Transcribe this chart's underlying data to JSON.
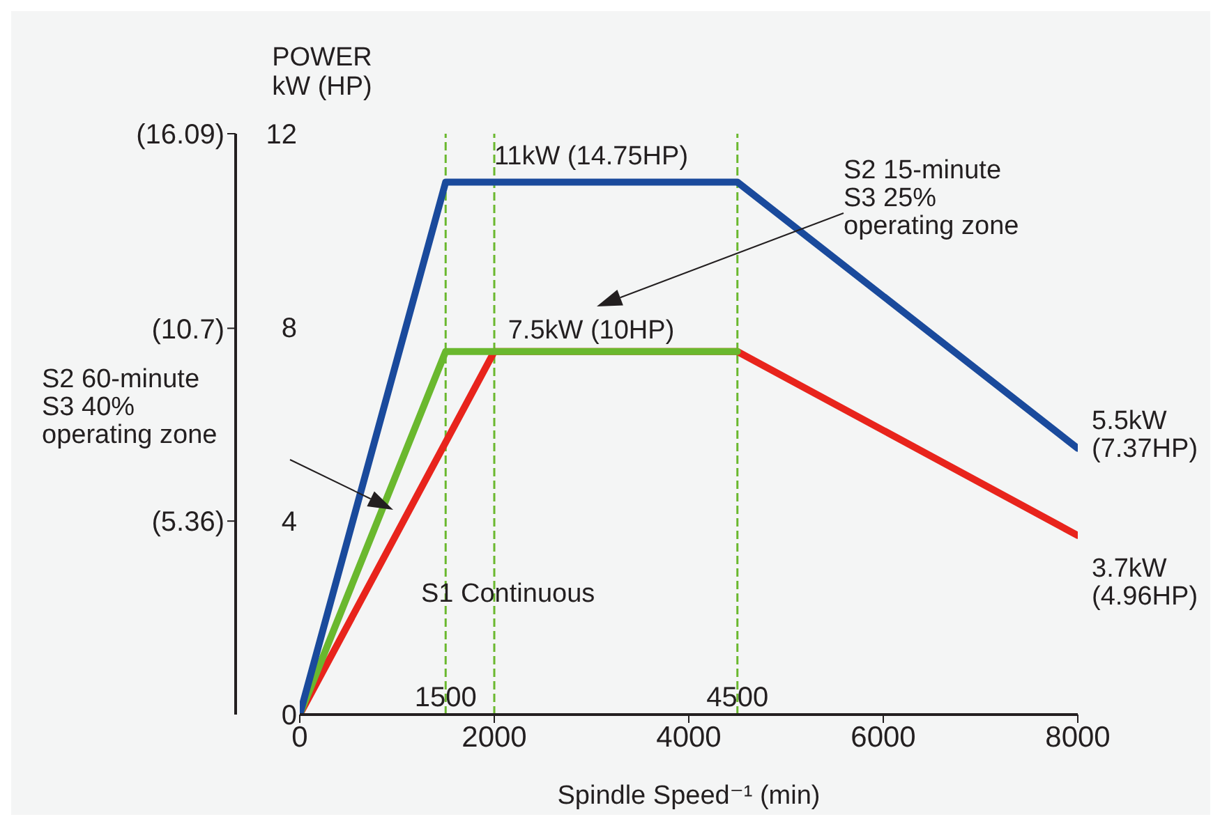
{
  "chart_data": {
    "type": "line",
    "xlabel": "Spindle Speed⁻¹ (min)",
    "ylabel": "POWER\nkW (HP)",
    "xlim": [
      0,
      8000
    ],
    "xticks": [
      0,
      2000,
      4000,
      6000,
      8000
    ],
    "ylim": [
      0,
      12
    ],
    "yticks": [
      0,
      4,
      8,
      12
    ],
    "y2lim": [
      0,
      16.09
    ],
    "y2ticks": [
      {
        "value": 5.36,
        "label": "(5.36)"
      },
      {
        "value": 10.7,
        "label": "(10.7)"
      },
      {
        "value": 16.09,
        "label": "(16.09)"
      }
    ],
    "series": [
      {
        "color": "#e8241c",
        "x": [
          0,
          2000,
          4500,
          8000
        ],
        "values": [
          0,
          7.5,
          7.5,
          3.7
        ]
      },
      {
        "color": "#6ab82e",
        "x": [
          0,
          1500,
          4500
        ],
        "values": [
          0,
          7.5,
          7.5
        ]
      },
      {
        "color": "#1a4a9c",
        "x": [
          0,
          1500,
          4500,
          8000
        ],
        "values": [
          0,
          11,
          11,
          5.5
        ]
      }
    ],
    "ref_lines": [
      {
        "axis": "x",
        "value": 1500,
        "label": "1500",
        "color": "#6ab82e",
        "line_style": "dashed"
      },
      {
        "axis": "x",
        "value": 2000,
        "color": "#6ab82e",
        "line_style": "dashed"
      },
      {
        "axis": "x",
        "value": 4500,
        "label": "4500",
        "color": "#6ab82e",
        "line_style": "dashed"
      }
    ],
    "annotations": [
      "11kW (14.75HP)",
      "7.5kW (10HP)",
      "5.5kW\n(7.37HP)",
      "3.7kW\n(4.96HP)",
      "S2  15-minute\nS3 25%\noperating zone",
      "S2 60-minute\nS3 40%\noperating zone",
      "S1 Continuous"
    ],
    "grid": false,
    "legend": false
  }
}
